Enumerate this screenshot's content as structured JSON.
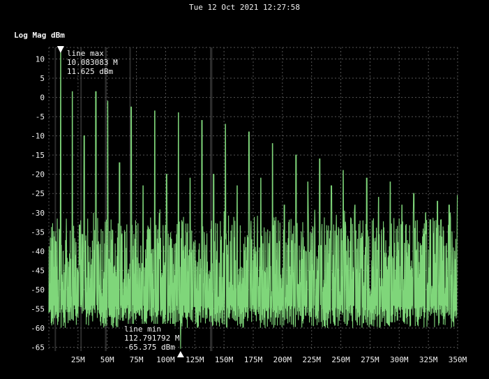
{
  "timestamp": "Tue 12 Oct 2021 12:27:58",
  "colors": {
    "trace": "#7fd67a",
    "grid": "#555555",
    "marker": "#ffffff",
    "band": "#2c2c2c"
  },
  "chart_data": {
    "type": "line",
    "title": "",
    "ylabel": "Log Mag dBm",
    "xlabel": "",
    "xlim": [
      0,
      350
    ],
    "ylim": [
      -66,
      13
    ],
    "x_unit": "MHz",
    "xticks": [
      25,
      50,
      75,
      100,
      125,
      150,
      175,
      200,
      225,
      250,
      275,
      300,
      325,
      350
    ],
    "xtick_labels": [
      "25M",
      "50M",
      "75M",
      "100M",
      "125M",
      "150M",
      "175M",
      "200M",
      "225M",
      "250M",
      "275M",
      "300M",
      "325M",
      "350M"
    ],
    "yticks": [
      10,
      5,
      0,
      -5,
      -10,
      -15,
      -20,
      -25,
      -30,
      -35,
      -40,
      -45,
      -50,
      -55,
      -60,
      -65
    ],
    "ytick_labels": [
      "10",
      "5",
      "0",
      "-5",
      "-10",
      "-15",
      "-20",
      "-25",
      "-30",
      "-35",
      "-40",
      "-45",
      "-50",
      "-55",
      "-60",
      "-65"
    ],
    "grid": true,
    "noise_floor_dbm": [
      -60,
      -35
    ],
    "harmonic_peaks": [
      {
        "x": 10.08,
        "y": 11.6
      },
      {
        "x": 20.2,
        "y": 1.5
      },
      {
        "x": 30.3,
        "y": -10
      },
      {
        "x": 40.3,
        "y": 1.5
      },
      {
        "x": 50.4,
        "y": -1
      },
      {
        "x": 60.5,
        "y": -17
      },
      {
        "x": 70.6,
        "y": -2.5
      },
      {
        "x": 80.7,
        "y": -23
      },
      {
        "x": 90.7,
        "y": -3.5
      },
      {
        "x": 100.8,
        "y": -20
      },
      {
        "x": 110.9,
        "y": -4
      },
      {
        "x": 121.0,
        "y": -21
      },
      {
        "x": 131.1,
        "y": -6
      },
      {
        "x": 141.1,
        "y": -20
      },
      {
        "x": 151.2,
        "y": -7
      },
      {
        "x": 161.3,
        "y": -23
      },
      {
        "x": 171.4,
        "y": -9
      },
      {
        "x": 181.5,
        "y": -21
      },
      {
        "x": 191.5,
        "y": -12
      },
      {
        "x": 201.6,
        "y": -28
      },
      {
        "x": 211.7,
        "y": -15
      },
      {
        "x": 221.8,
        "y": -22
      },
      {
        "x": 231.9,
        "y": -16
      },
      {
        "x": 241.9,
        "y": -23
      },
      {
        "x": 252.0,
        "y": -19
      },
      {
        "x": 262.1,
        "y": -28
      },
      {
        "x": 272.2,
        "y": -21
      },
      {
        "x": 282.3,
        "y": -26
      },
      {
        "x": 292.3,
        "y": -22
      },
      {
        "x": 302.4,
        "y": -28
      },
      {
        "x": 312.5,
        "y": -25
      },
      {
        "x": 322.6,
        "y": -30
      },
      {
        "x": 332.7,
        "y": -27
      },
      {
        "x": 342.7,
        "y": -28
      },
      {
        "x": 350.0,
        "y": -25.5
      }
    ],
    "markers": [
      {
        "name": "max",
        "label": "line max",
        "freq_text": "10.083083 M",
        "value_text": "11.625 dBm",
        "x": 10.083083,
        "y": 11.625
      },
      {
        "name": "min",
        "label": "line min",
        "freq_text": "112.791792 M",
        "value_text": "-65.375 dBm",
        "x": 112.791792,
        "y": -65.375
      }
    ],
    "highlight_bands_mhz": [
      [
        5,
        6.2
      ],
      [
        27,
        28.2
      ],
      [
        48,
        49.5
      ],
      [
        69,
        70
      ],
      [
        138,
        140
      ]
    ]
  }
}
